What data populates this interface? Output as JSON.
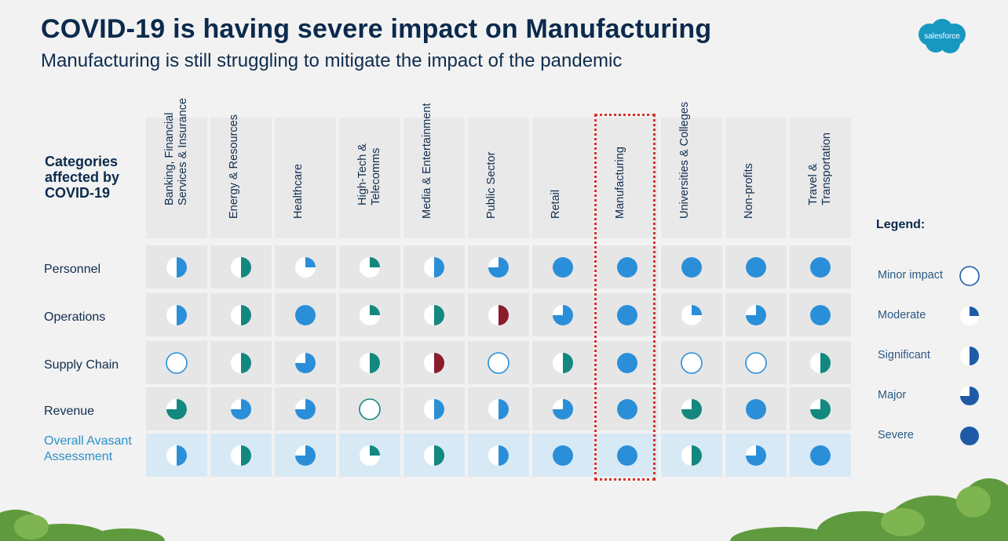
{
  "header": {
    "title": "COVID-19 is having severe impact on Manufacturing",
    "subtitle": "Manufacturing is still struggling to mitigate the impact of the pandemic"
  },
  "logo": {
    "text": "salesforce"
  },
  "chart_data": {
    "type": "table",
    "row_header": "Categories affected by COVID-19",
    "columns": [
      "Banking, Financial Services & Insurance",
      "Energy & Resources",
      "Healthcare",
      "High-Tech & Telecomms",
      "Media & Entertainment",
      "Public Sector",
      "Retail",
      "Manufacturing",
      "Universities & Colleges",
      "Non-profits",
      "Travel & Transportation"
    ],
    "highlighted_column": "Manufacturing",
    "rows": [
      {
        "label": "Personnel",
        "overall": false,
        "cells": [
          {
            "level": "Significant",
            "color": "#2a8fd8"
          },
          {
            "level": "Significant",
            "color": "#13887f"
          },
          {
            "level": "Moderate",
            "color": "#2a8fd8"
          },
          {
            "level": "Moderate",
            "color": "#13887f"
          },
          {
            "level": "Significant",
            "color": "#2a8fd8"
          },
          {
            "level": "Major",
            "color": "#2a8fd8"
          },
          {
            "level": "Severe",
            "color": "#2a8fd8"
          },
          {
            "level": "Severe",
            "color": "#2a8fd8"
          },
          {
            "level": "Severe",
            "color": "#2a8fd8"
          },
          {
            "level": "Severe",
            "color": "#2a8fd8"
          },
          {
            "level": "Severe",
            "color": "#2a8fd8"
          }
        ]
      },
      {
        "label": "Operations",
        "overall": false,
        "cells": [
          {
            "level": "Significant",
            "color": "#2a8fd8"
          },
          {
            "level": "Significant",
            "color": "#13887f"
          },
          {
            "level": "Severe",
            "color": "#2a8fd8"
          },
          {
            "level": "Moderate",
            "color": "#13887f"
          },
          {
            "level": "Significant",
            "color": "#13887f"
          },
          {
            "level": "Significant",
            "color": "#8b1c2c"
          },
          {
            "level": "Major",
            "color": "#2a8fd8"
          },
          {
            "level": "Severe",
            "color": "#2a8fd8"
          },
          {
            "level": "Moderate",
            "color": "#2a8fd8"
          },
          {
            "level": "Major",
            "color": "#2a8fd8"
          },
          {
            "level": "Severe",
            "color": "#2a8fd8"
          }
        ]
      },
      {
        "label": "Supply Chain",
        "overall": false,
        "cells": [
          {
            "level": "Minor impact",
            "color": "#2a8fd8"
          },
          {
            "level": "Significant",
            "color": "#13887f"
          },
          {
            "level": "Major",
            "color": "#2a8fd8"
          },
          {
            "level": "Significant",
            "color": "#13887f"
          },
          {
            "level": "Significant",
            "color": "#8b1c2c"
          },
          {
            "level": "Minor impact",
            "color": "#2a8fd8"
          },
          {
            "level": "Significant",
            "color": "#13887f"
          },
          {
            "level": "Severe",
            "color": "#2a8fd8"
          },
          {
            "level": "Minor impact",
            "color": "#2a8fd8"
          },
          {
            "level": "Minor impact",
            "color": "#2a8fd8"
          },
          {
            "level": "Significant",
            "color": "#13887f"
          }
        ]
      },
      {
        "label": "Revenue",
        "overall": false,
        "cells": [
          {
            "level": "Major",
            "color": "#13887f"
          },
          {
            "level": "Major",
            "color": "#2a8fd8"
          },
          {
            "level": "Major",
            "color": "#2a8fd8"
          },
          {
            "level": "Minor impact",
            "color": "#13887f"
          },
          {
            "level": "Significant",
            "color": "#2a8fd8"
          },
          {
            "level": "Significant",
            "color": "#2a8fd8"
          },
          {
            "level": "Major",
            "color": "#2a8fd8"
          },
          {
            "level": "Severe",
            "color": "#2a8fd8"
          },
          {
            "level": "Major",
            "color": "#13887f"
          },
          {
            "level": "Severe",
            "color": "#2a8fd8"
          },
          {
            "level": "Major",
            "color": "#13887f"
          }
        ]
      },
      {
        "label": "Overall Avasant Assessment",
        "overall": true,
        "cells": [
          {
            "level": "Significant",
            "color": "#2a8fd8"
          },
          {
            "level": "Significant",
            "color": "#13887f"
          },
          {
            "level": "Major",
            "color": "#2a8fd8"
          },
          {
            "level": "Moderate",
            "color": "#13887f"
          },
          {
            "level": "Significant",
            "color": "#13887f"
          },
          {
            "level": "Significant",
            "color": "#2a8fd8"
          },
          {
            "level": "Severe",
            "color": "#2a8fd8"
          },
          {
            "level": "Severe",
            "color": "#2a8fd8"
          },
          {
            "level": "Significant",
            "color": "#13887f"
          },
          {
            "level": "Major",
            "color": "#2a8fd8"
          },
          {
            "level": "Severe",
            "color": "#2a8fd8"
          }
        ]
      }
    ],
    "legend": {
      "title": "Legend:",
      "items": [
        {
          "label": "Minor impact",
          "fraction": 0
        },
        {
          "label": "Moderate",
          "fraction": 0.25
        },
        {
          "label": "Significant",
          "fraction": 0.5
        },
        {
          "label": "Major",
          "fraction": 0.75
        },
        {
          "label": "Severe",
          "fraction": 1
        }
      ],
      "color": "#1f5aa6"
    }
  }
}
